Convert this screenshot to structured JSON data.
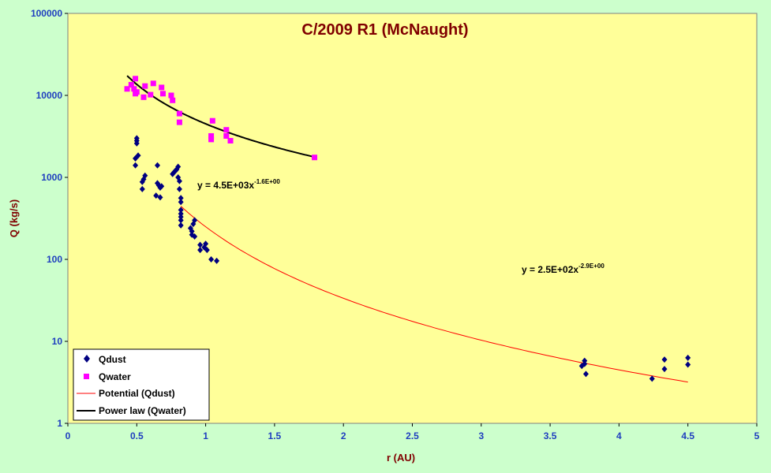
{
  "chart_data": {
    "type": "scatter",
    "title": "C/2009 R1 (McNaught)",
    "xlabel": "r (AU)",
    "ylabel": "Q (kg/s)",
    "xlim": [
      0,
      5
    ],
    "ylim": [
      1,
      100000
    ],
    "yscale": "log",
    "x_ticks": [
      "0",
      "0.5",
      "1",
      "1.5",
      "2",
      "2.5",
      "3",
      "3.5",
      "4",
      "4.5",
      "5"
    ],
    "y_ticks": [
      "1",
      "10",
      "100",
      "1000",
      "10000",
      "100000"
    ],
    "grid": false,
    "legend_position": "bottom-left",
    "colors": {
      "page_bg": "#ccffcc",
      "plot_bg": "#ffff99",
      "qdust": "#000080",
      "qwater": "#ff00ff",
      "dust_fit": "#ff0000",
      "water_fit": "#000000",
      "title": "#800000",
      "ticks": "#1f3fbf"
    },
    "series": [
      {
        "name": "Qdust",
        "marker": "diamond",
        "points": [
          [
            0.49,
            1700
          ],
          [
            0.49,
            1400
          ],
          [
            0.5,
            2600
          ],
          [
            0.5,
            2800
          ],
          [
            0.5,
            3000
          ],
          [
            0.51,
            1850
          ],
          [
            0.54,
            720
          ],
          [
            0.54,
            880
          ],
          [
            0.55,
            950
          ],
          [
            0.56,
            1050
          ],
          [
            0.64,
            600
          ],
          [
            0.65,
            1400
          ],
          [
            0.65,
            850
          ],
          [
            0.66,
            800
          ],
          [
            0.67,
            750
          ],
          [
            0.67,
            570
          ],
          [
            0.68,
            780
          ],
          [
            0.76,
            1100
          ],
          [
            0.77,
            1150
          ],
          [
            0.78,
            1200
          ],
          [
            0.79,
            1250
          ],
          [
            0.8,
            1350
          ],
          [
            0.8,
            1000
          ],
          [
            0.81,
            900
          ],
          [
            0.81,
            720
          ],
          [
            0.82,
            560
          ],
          [
            0.82,
            500
          ],
          [
            0.82,
            400
          ],
          [
            0.82,
            360
          ],
          [
            0.82,
            330
          ],
          [
            0.82,
            300
          ],
          [
            0.82,
            260
          ],
          [
            0.89,
            240
          ],
          [
            0.9,
            220
          ],
          [
            0.9,
            200
          ],
          [
            0.91,
            270
          ],
          [
            0.92,
            300
          ],
          [
            0.92,
            190
          ],
          [
            0.96,
            150
          ],
          [
            0.96,
            130
          ],
          [
            0.99,
            140
          ],
          [
            1.0,
            155
          ],
          [
            1.01,
            130
          ],
          [
            1.04,
            100
          ],
          [
            1.08,
            96
          ],
          [
            3.73,
            5.0
          ],
          [
            3.75,
            5.8
          ],
          [
            3.75,
            5.3
          ],
          [
            3.76,
            4.0
          ],
          [
            4.24,
            3.5
          ],
          [
            4.33,
            6.0
          ],
          [
            4.33,
            4.6
          ],
          [
            4.5,
            6.3
          ],
          [
            4.5,
            5.2
          ]
        ]
      },
      {
        "name": "Qwater",
        "marker": "square",
        "points": [
          [
            0.43,
            12000
          ],
          [
            0.46,
            13500
          ],
          [
            0.48,
            12000
          ],
          [
            0.49,
            10500
          ],
          [
            0.49,
            16000
          ],
          [
            0.5,
            11000
          ],
          [
            0.55,
            9500
          ],
          [
            0.56,
            13000
          ],
          [
            0.6,
            10200
          ],
          [
            0.62,
            14000
          ],
          [
            0.68,
            12500
          ],
          [
            0.69,
            10500
          ],
          [
            0.75,
            10000
          ],
          [
            0.76,
            8700
          ],
          [
            0.81,
            6000
          ],
          [
            0.81,
            4700
          ],
          [
            1.04,
            3200
          ],
          [
            1.04,
            2900
          ],
          [
            1.05,
            4900
          ],
          [
            1.15,
            3800
          ],
          [
            1.15,
            3200
          ],
          [
            1.18,
            2800
          ],
          [
            1.79,
            1750
          ]
        ]
      }
    ],
    "fits": [
      {
        "name": "Potential (Qdust)",
        "a": 250,
        "b": -2.9,
        "x_range": [
          0.82,
          4.5
        ],
        "style": "thin-red-line",
        "equation_text": "y = 2.5E+02x",
        "equation_exp": "-2.9E+00"
      },
      {
        "name": "Power law (Qwater)",
        "a": 4500,
        "b": -1.6,
        "x_range": [
          0.43,
          1.8
        ],
        "style": "thick-black-line",
        "equation_text": "y = 4.5E+03x",
        "equation_exp": "-1.6E+00"
      }
    ],
    "legend": [
      "Qdust",
      "Qwater",
      "Potential (Qdust)",
      "Power law (Qwater)"
    ]
  }
}
